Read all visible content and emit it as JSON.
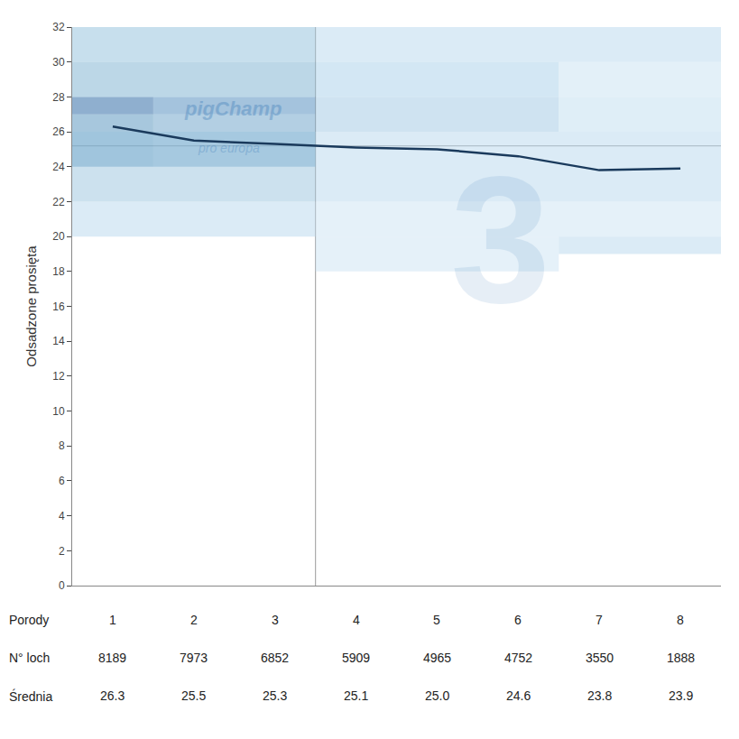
{
  "chart_data": {
    "type": "line",
    "x": [
      1,
      2,
      3,
      4,
      5,
      6,
      7,
      8
    ],
    "values": [
      26.3,
      25.5,
      25.3,
      25.1,
      25.0,
      24.6,
      23.8,
      23.9
    ],
    "color": "#1a3a5c",
    "ylabel": "Odsadzone prosięta",
    "xlim": [
      0.5,
      8.5
    ],
    "ylim": [
      0,
      32
    ],
    "yticks": [
      0,
      2,
      4,
      6,
      8,
      10,
      12,
      14,
      16,
      18,
      20,
      22,
      24,
      26,
      28,
      30,
      32
    ],
    "tick_labels": "y",
    "grid": false,
    "reference_lines": [
      {
        "axis": "y",
        "value": 25.2,
        "color": "#aaaaaa"
      },
      {
        "axis": "x",
        "value": 3.5,
        "color": "#aaaaaa"
      }
    ],
    "bands": [
      {
        "y0": 30,
        "y1": 32,
        "x0": 0.5,
        "x1": 3.5,
        "color": "#8fbfdc"
      },
      {
        "y0": 30,
        "y1": 32,
        "x0": 3.5,
        "x1": 8.5,
        "color": "#b8d8ed"
      },
      {
        "y0": 28,
        "y1": 30,
        "x0": 0.5,
        "x1": 3.5,
        "color": "#7ab0d0"
      },
      {
        "y0": 28,
        "y1": 30,
        "x0": 3.5,
        "x1": 6.5,
        "color": "#a8cfea"
      },
      {
        "y0": 28,
        "y1": 30,
        "x0": 6.5,
        "x1": 8.5,
        "color": "#c8e2f2"
      },
      {
        "y0": 27,
        "y1": 28,
        "x0": 0.5,
        "x1": 1.5,
        "color": "#2060a0"
      },
      {
        "y0": 27,
        "y1": 28,
        "x0": 1.5,
        "x1": 3.5,
        "color": "#4a88bb"
      },
      {
        "y0": 26,
        "y1": 28,
        "x0": 3.5,
        "x1": 6.5,
        "color": "#a0c8e4"
      },
      {
        "y0": 26,
        "y1": 28,
        "x0": 6.5,
        "x1": 8.5,
        "color": "#c0ddf0"
      },
      {
        "y0": 24,
        "y1": 27,
        "x0": 0.5,
        "x1": 1.5,
        "color": "#5090bb"
      },
      {
        "y0": 24,
        "y1": 27,
        "x0": 1.5,
        "x1": 3.5,
        "color": "#68a0c8"
      },
      {
        "y0": 22,
        "y1": 26,
        "x0": 0.5,
        "x1": 3.5,
        "color": "#9ac4de"
      },
      {
        "y0": 22,
        "y1": 26,
        "x0": 3.5,
        "x1": 8.5,
        "color": "#b8d8ed"
      },
      {
        "y0": 20,
        "y1": 22,
        "x0": 0.5,
        "x1": 3.5,
        "color": "#b8d8ed"
      },
      {
        "y0": 20,
        "y1": 22,
        "x0": 3.5,
        "x1": 8.5,
        "color": "#cce4f3"
      },
      {
        "y0": 19,
        "y1": 20,
        "x0": 6.5,
        "x1": 8.5,
        "color": "#b8d8ed"
      },
      {
        "y0": 18,
        "y1": 20,
        "x0": 3.5,
        "x1": 6.5,
        "color": "#cce4f3"
      }
    ],
    "annotations": [
      "pigChamp",
      "pro europa",
      "3"
    ],
    "table": {
      "row_labels": [
        "Porody",
        "N° loch",
        "Średnia"
      ],
      "rows": [
        [
          "1",
          "2",
          "3",
          "4",
          "5",
          "6",
          "7",
          "8"
        ],
        [
          "8189",
          "7973",
          "6852",
          "5909",
          "4965",
          "4752",
          "3550",
          "1888"
        ],
        [
          "26.3",
          "25.5",
          "25.3",
          "25.1",
          "25.0",
          "24.6",
          "23.8",
          "23.9"
        ]
      ]
    }
  }
}
